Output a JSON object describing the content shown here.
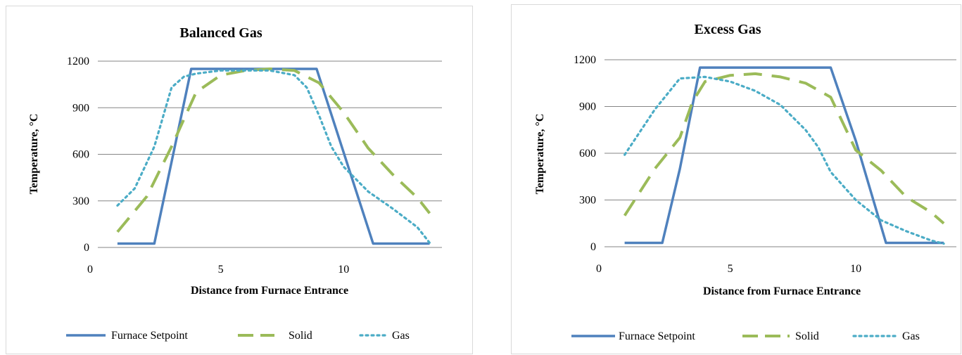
{
  "colors": {
    "setpoint": "#4f81bd",
    "solid": "#9bbb59",
    "gas": "#4bacc6",
    "grid": "#868686"
  },
  "chart_data": [
    {
      "type": "line",
      "title": "Balanced Gas",
      "xlabel": "Distance from Furnace Entrance",
      "ylabel": "Temperature, °C",
      "xlim": [
        0,
        14
      ],
      "ylim": [
        0,
        1200
      ],
      "xticks": [
        0,
        5,
        10
      ],
      "yticks": [
        0,
        300,
        600,
        900,
        1200
      ],
      "grid": "horizontal",
      "legend_position": "bottom",
      "series": [
        {
          "name": "Furnace Setpoint",
          "style": "solid",
          "points": [
            [
              0.8,
              25
            ],
            [
              2.3,
              25
            ],
            [
              3.8,
              1150
            ],
            [
              8.9,
              1150
            ],
            [
              11.2,
              25
            ],
            [
              13.5,
              25
            ]
          ]
        },
        {
          "name": "Solid",
          "style": "dashed",
          "points": [
            [
              0.8,
              100
            ],
            [
              2.0,
              330
            ],
            [
              3.0,
              650
            ],
            [
              4.0,
              1000
            ],
            [
              5.0,
              1110
            ],
            [
              6.0,
              1140
            ],
            [
              7.0,
              1150
            ],
            [
              8.0,
              1140
            ],
            [
              9.0,
              1060
            ],
            [
              10.0,
              870
            ],
            [
              11.0,
              640
            ],
            [
              12.0,
              470
            ],
            [
              13.0,
              320
            ],
            [
              13.5,
              220
            ]
          ]
        },
        {
          "name": "Gas",
          "style": "dotted",
          "points": [
            [
              0.8,
              270
            ],
            [
              1.5,
              380
            ],
            [
              2.3,
              650
            ],
            [
              3.0,
              1030
            ],
            [
              3.5,
              1100
            ],
            [
              4.0,
              1120
            ],
            [
              5.0,
              1140
            ],
            [
              6.0,
              1140
            ],
            [
              7.0,
              1140
            ],
            [
              8.0,
              1110
            ],
            [
              8.5,
              1030
            ],
            [
              9.0,
              850
            ],
            [
              9.5,
              650
            ],
            [
              10.0,
              520
            ],
            [
              11.0,
              360
            ],
            [
              12.0,
              250
            ],
            [
              13.0,
              130
            ],
            [
              13.5,
              30
            ]
          ]
        }
      ]
    },
    {
      "type": "line",
      "title": "Excess Gas",
      "xlabel": "Distance from Furnace Entrance",
      "ylabel": "Temperature, °C",
      "xlim": [
        0,
        14
      ],
      "ylim": [
        0,
        1200
      ],
      "xticks": [
        0,
        5,
        10
      ],
      "yticks": [
        0,
        300,
        600,
        900,
        1200
      ],
      "grid": "horizontal",
      "legend_position": "bottom",
      "series": [
        {
          "name": "Furnace Setpoint",
          "style": "solid",
          "points": [
            [
              0.8,
              25
            ],
            [
              2.3,
              25
            ],
            [
              3.0,
              500
            ],
            [
              3.8,
              1150
            ],
            [
              9.0,
              1150
            ],
            [
              10.0,
              680
            ],
            [
              11.2,
              25
            ],
            [
              13.5,
              25
            ]
          ]
        },
        {
          "name": "Solid",
          "style": "dashed",
          "points": [
            [
              0.8,
              200
            ],
            [
              2.0,
              500
            ],
            [
              3.0,
              700
            ],
            [
              3.5,
              930
            ],
            [
              4.0,
              1060
            ],
            [
              5.0,
              1100
            ],
            [
              6.0,
              1110
            ],
            [
              7.0,
              1090
            ],
            [
              8.0,
              1050
            ],
            [
              9.0,
              960
            ],
            [
              10.0,
              620
            ],
            [
              11.0,
              490
            ],
            [
              12.0,
              320
            ],
            [
              13.0,
              220
            ],
            [
              13.5,
              150
            ]
          ]
        },
        {
          "name": "Gas",
          "style": "dotted",
          "points": [
            [
              0.8,
              590
            ],
            [
              2.0,
              880
            ],
            [
              3.0,
              1080
            ],
            [
              4.0,
              1090
            ],
            [
              5.0,
              1060
            ],
            [
              6.0,
              1000
            ],
            [
              7.0,
              910
            ],
            [
              8.0,
              750
            ],
            [
              8.5,
              640
            ],
            [
              9.0,
              480
            ],
            [
              10.0,
              300
            ],
            [
              11.0,
              170
            ],
            [
              12.0,
              100
            ],
            [
              13.0,
              40
            ],
            [
              13.5,
              20
            ]
          ]
        }
      ]
    }
  ]
}
